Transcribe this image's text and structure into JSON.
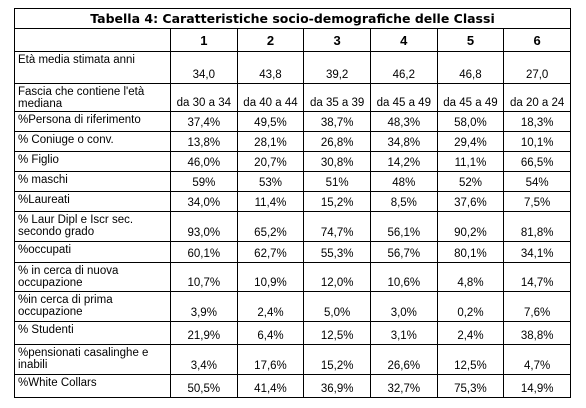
{
  "table": {
    "title": "Tabella 4: Caratteristiche socio-demografiche delle Classi",
    "columns": [
      "1",
      "2",
      "3",
      "4",
      "5",
      "6"
    ],
    "rows": [
      [
        "Età media stimata anni",
        "34,0",
        "43,8",
        "39,2",
        "46,2",
        "46,8",
        "27,0"
      ],
      [
        "Fascia che contiene l'età mediana",
        "da 30 a 34",
        "da 40 a 44",
        "da 35 a 39",
        "da 45 a 49",
        "da 45 a 49",
        "da 20 a 24"
      ],
      [
        "%Persona di riferimento",
        "37,4%",
        "49,5%",
        "38,7%",
        "48,3%",
        "58,0%",
        "18,3%"
      ],
      [
        "% Coniuge o conv.",
        "13,8%",
        "28,1%",
        "26,8%",
        "34,8%",
        "29,4%",
        "10,1%"
      ],
      [
        "% Figlio",
        "46,0%",
        "20,7%",
        "30,8%",
        "14,2%",
        "11,1%",
        "66,5%"
      ],
      [
        "% maschi",
        "59%",
        "53%",
        "51%",
        "48%",
        "52%",
        "54%"
      ],
      [
        "%Laureati",
        "34,0%",
        "11,4%",
        "15,2%",
        "8,5%",
        "37,6%",
        "7,5%"
      ],
      [
        "% Laur Dipl e Iscr sec. secondo grado",
        "93,0%",
        "65,2%",
        "74,7%",
        "56,1%",
        "90,2%",
        "81,8%"
      ],
      [
        "%occupati",
        "60,1%",
        "62,7%",
        "55,3%",
        "56,7%",
        "80,1%",
        "34,1%"
      ],
      [
        "% in cerca di nuova occupazione",
        "10,7%",
        "10,9%",
        "12,0%",
        "10,6%",
        "4,8%",
        "14,7%"
      ],
      [
        "%in cerca di prima occupazione",
        "3,9%",
        "2,4%",
        "5,0%",
        "3,0%",
        "0,2%",
        "7,6%"
      ],
      [
        "% Studenti",
        "21,9%",
        "6,4%",
        "12,5%",
        "3,1%",
        "2,4%",
        "38,8%"
      ],
      [
        "%pensionati casalinghe e inabili",
        "3,4%",
        "17,6%",
        "15,2%",
        "26,6%",
        "12,5%",
        "4,7%"
      ],
      [
        "%White Collars",
        "50,5%",
        "41,4%",
        "36,9%",
        "32,7%",
        "75,3%",
        "14,9%"
      ]
    ]
  }
}
